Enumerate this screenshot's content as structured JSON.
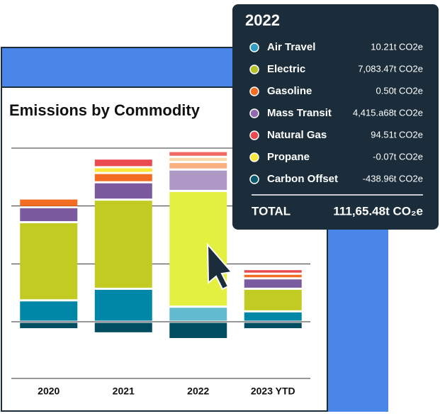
{
  "chart_data": {
    "type": "stacked-bar",
    "title": "Emissions by Commodity",
    "categories": [
      "2020",
      "2021",
      "2022",
      "2023 YTD"
    ],
    "highlight": 2,
    "series": [
      {
        "name": "Carbon Offset",
        "color": "#004d61",
        "highlight_color": "#004d61",
        "values": [
          -0.13,
          -0.2,
          -0.3,
          -0.13
        ]
      },
      {
        "name": "Air Travel",
        "color": "#0087a8",
        "highlight_color": "#63bbd0",
        "values": [
          0.37,
          0.57,
          0.26,
          0.18
        ]
      },
      {
        "name": "Electric",
        "color": "#c2cb21",
        "highlight_color": "#e4f040",
        "values": [
          1.35,
          1.54,
          2.0,
          0.39
        ]
      },
      {
        "name": "Mass Transit",
        "color": "#7b5aa0",
        "highlight_color": "#ae99c6",
        "values": [
          0.26,
          0.3,
          0.37,
          0.18
        ]
      },
      {
        "name": "Gasoline",
        "color": "#f26c21",
        "highlight_color": "#f9b083",
        "values": [
          0.15,
          0.16,
          0.13,
          0.08
        ]
      },
      {
        "name": "Propane",
        "color": "#fde73a",
        "highlight_color": "#fcd9a8",
        "values": [
          0,
          0.1,
          0.09,
          0
        ]
      },
      {
        "name": "Natural Gas",
        "color": "#e94b50",
        "highlight_color": "#ee6a63",
        "values": [
          0,
          0.15,
          0.1,
          0.08
        ]
      }
    ],
    "ylim": [
      -0.5,
      3.5
    ],
    "gridlines": [
      0,
      1,
      2,
      3
    ]
  },
  "tooltip": {
    "title": "2022",
    "items": [
      {
        "name": "Air Travel",
        "color": "#2f9ec2",
        "value": "10.21t CO2e"
      },
      {
        "name": "Electric",
        "color": "#b5c22a",
        "value": "7,083.47t CO2e"
      },
      {
        "name": "Gasoline",
        "color": "#f26c21",
        "value": "0.50t CO2e"
      },
      {
        "name": "Mass Transit",
        "color": "#8e6bb0",
        "value": "4,415.a68t CO2e"
      },
      {
        "name": "Natural Gas",
        "color": "#e94b50",
        "value": "94.51t CO2e"
      },
      {
        "name": "Propane",
        "color": "#fde73a",
        "value": "-0.07t CO2e"
      },
      {
        "name": "Carbon Offset",
        "color": "#0b5a70",
        "value": "-438.96t CO2e"
      }
    ],
    "total_label": "TOTAL",
    "total_value": "111,65.48t CO₂e"
  }
}
